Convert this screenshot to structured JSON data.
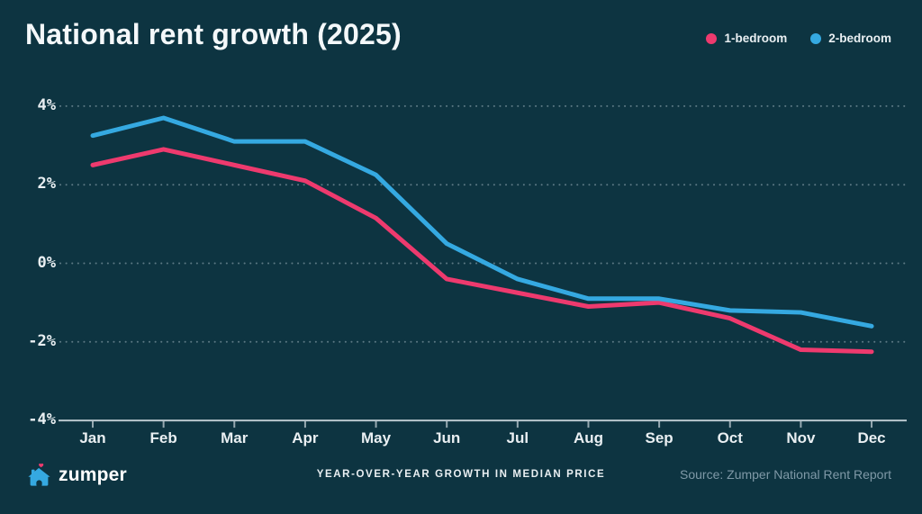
{
  "header": {
    "title": "National rent growth (2025)"
  },
  "chart_data": {
    "type": "line",
    "title": "National rent growth (2025)",
    "categories": [
      "Jan",
      "Feb",
      "Mar",
      "Apr",
      "May",
      "Jun",
      "Jul",
      "Aug",
      "Sep",
      "Oct",
      "Nov",
      "Dec"
    ],
    "series": [
      {
        "name": "1-bedroom",
        "color": "#ee3a6e",
        "values": [
          2.5,
          2.9,
          2.5,
          2.1,
          1.15,
          -0.4,
          -0.75,
          -1.1,
          -1.0,
          -1.4,
          -2.2,
          -2.25
        ]
      },
      {
        "name": "2-bedroom",
        "color": "#35a9e1",
        "values": [
          3.25,
          3.7,
          3.1,
          3.1,
          2.25,
          0.5,
          -0.4,
          -0.9,
          -0.9,
          -1.2,
          -1.25,
          -1.6
        ]
      }
    ],
    "xlabel": "",
    "ylabel": "",
    "ylim": [
      -4,
      4
    ],
    "yticks": [
      "4%",
      "2%",
      "0%",
      "-2%",
      "-4%"
    ],
    "ytick_values": [
      4,
      2,
      0,
      -2,
      -4
    ],
    "grid": "dotted-horizontal",
    "legend_position": "top-right"
  },
  "footer": {
    "brand": "zumper",
    "caption": "YEAR-OVER-YEAR GROWTH IN MEDIAN PRICE",
    "source": "Source: Zumper National Rent Report"
  },
  "colors": {
    "background": "#0d3441",
    "title": "#f4f8fa",
    "axis": "#b9c7ce",
    "grid": "#9db2bc",
    "tick_label": "#e9eff2",
    "source_text": "#7f99a7",
    "one_bedroom": "#ee3a6e",
    "two_bedroom": "#35a9e1",
    "brand_blue": "#35a9e1",
    "brand_heart_pink": "#ee3a6e"
  }
}
